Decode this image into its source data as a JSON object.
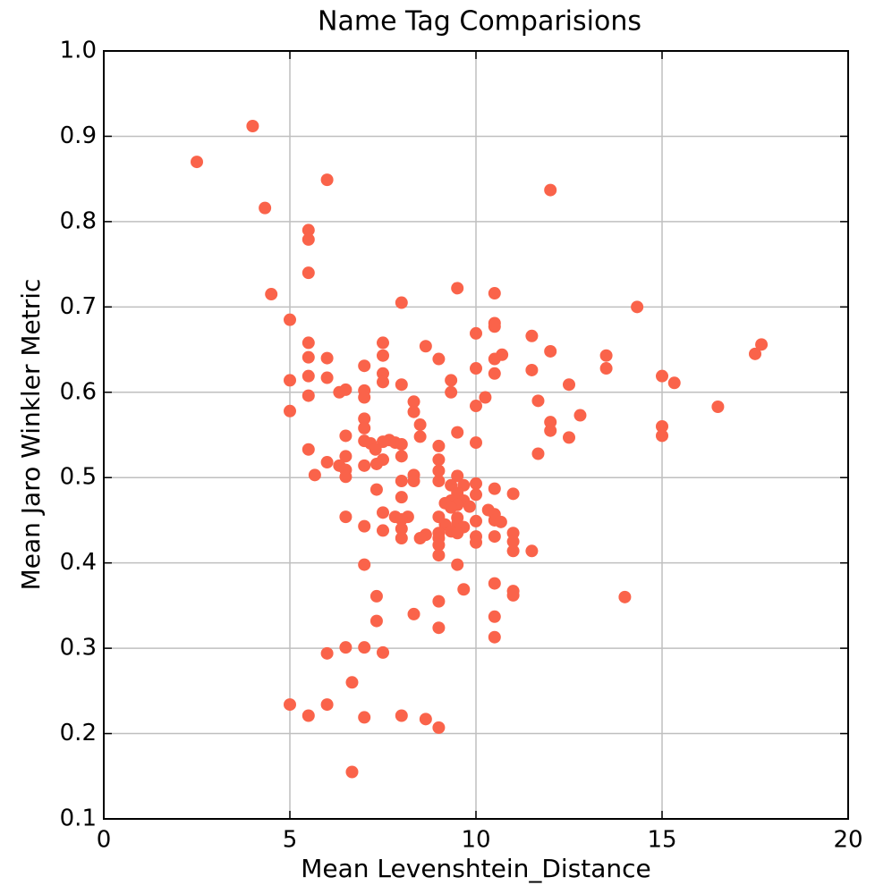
{
  "chart_data": {
    "type": "scatter",
    "title": "Name Tag Comparisions",
    "x_label": "Mean Levenshtein_Distance",
    "y_label": "Mean Jaro Winkler Metric",
    "color": "#fa634a",
    "grid": true,
    "xlim": [
      0,
      20
    ],
    "xticks": [
      0,
      5,
      10,
      15,
      20
    ],
    "ylim": [
      0.1,
      1.0
    ],
    "yticks": [
      0.1,
      0.2,
      0.3,
      0.4,
      0.5,
      0.6,
      0.7,
      0.8,
      0.9,
      {
        "value": 1.0,
        "label": "1.0"
      }
    ],
    "x": [
      2.5,
      4.0,
      4.33,
      6.0,
      12.0,
      4.5,
      5.5,
      5.5,
      5.5,
      8.0,
      9.5,
      10.5,
      14.33,
      5.0,
      10.5,
      10.5,
      10.0,
      11.5,
      5.5,
      7.5,
      8.65,
      17.67,
      17.5,
      12.0,
      10.7,
      10.5,
      13.5,
      5.5,
      6.0,
      7.5,
      9.0,
      7.0,
      13.5,
      11.5,
      10.0,
      10.5,
      7.5,
      5.5,
      15.0,
      5.0,
      6.0,
      7.5,
      15.33,
      12.5,
      8.0,
      9.33,
      6.5,
      7.0,
      6.33,
      9.33,
      5.5,
      7.0,
      10.25,
      11.67,
      8.33,
      10.0,
      16.5,
      5.0,
      8.33,
      12.8,
      7.0,
      8.5,
      12.0,
      15.0,
      7.0,
      12.0,
      9.5,
      8.5,
      6.5,
      15.0,
      12.5,
      7.67,
      7.0,
      7.5,
      7.83,
      10.0,
      7.17,
      8.0,
      9.0,
      5.5,
      7.3,
      11.67,
      8.0,
      6.5,
      9.0,
      7.5,
      6.0,
      7.33,
      7.0,
      6.33,
      6.5,
      9.0,
      5.67,
      8.33,
      9.5,
      6.5,
      8.33,
      8.0,
      9.0,
      10.0,
      9.67,
      9.33,
      7.33,
      10.5,
      9.5,
      11.0,
      10.0,
      8.0,
      9.33,
      9.67,
      9.17,
      9.5,
      9.83,
      9.33,
      10.33,
      7.5,
      10.5,
      7.83,
      6.5,
      9.0,
      8.17,
      9.5,
      8.0,
      10.0,
      10.5,
      10.67,
      9.5,
      9.17,
      7.0,
      9.67,
      8.0,
      7.5,
      9.33,
      9.5,
      9.0,
      11.0,
      8.65,
      10.0,
      10.5,
      8.5,
      8.0,
      9.0,
      11.0,
      10.0,
      9.0,
      11.0,
      11.5,
      9.0,
      9.5,
      7.0,
      10.5,
      9.67,
      11.0,
      11.0,
      14.0,
      7.33,
      9.0,
      8.33,
      10.5,
      7.33,
      9.0,
      10.5,
      6.5,
      7.0,
      6.0,
      7.5,
      6.67,
      5.0,
      6.0,
      5.5,
      7.0,
      8.0,
      8.65,
      9.0,
      6.67
    ],
    "y": [
      0.87,
      0.912,
      0.816,
      0.849,
      0.837,
      0.715,
      0.79,
      0.779,
      0.74,
      0.705,
      0.722,
      0.716,
      0.7,
      0.685,
      0.681,
      0.677,
      0.669,
      0.666,
      0.658,
      0.658,
      0.654,
      0.656,
      0.645,
      0.648,
      0.644,
      0.639,
      0.643,
      0.641,
      0.64,
      0.643,
      0.639,
      0.631,
      0.628,
      0.626,
      0.628,
      0.622,
      0.622,
      0.619,
      0.619,
      0.614,
      0.617,
      0.612,
      0.611,
      0.609,
      0.609,
      0.614,
      0.603,
      0.602,
      0.6,
      0.6,
      0.596,
      0.594,
      0.594,
      0.59,
      0.589,
      0.584,
      0.583,
      0.578,
      0.577,
      0.573,
      0.569,
      0.562,
      0.565,
      0.56,
      0.558,
      0.555,
      0.553,
      0.548,
      0.549,
      0.549,
      0.547,
      0.544,
      0.543,
      0.542,
      0.541,
      0.541,
      0.54,
      0.539,
      0.537,
      0.533,
      0.533,
      0.528,
      0.525,
      0.525,
      0.521,
      0.521,
      0.518,
      0.516,
      0.514,
      0.514,
      0.509,
      0.508,
      0.503,
      0.503,
      0.502,
      0.501,
      0.496,
      0.496,
      0.496,
      0.493,
      0.491,
      0.491,
      0.486,
      0.487,
      0.482,
      0.481,
      0.48,
      0.477,
      0.473,
      0.473,
      0.47,
      0.468,
      0.466,
      0.465,
      0.462,
      0.459,
      0.457,
      0.454,
      0.454,
      0.454,
      0.454,
      0.453,
      0.451,
      0.449,
      0.45,
      0.448,
      0.446,
      0.445,
      0.443,
      0.442,
      0.44,
      0.438,
      0.437,
      0.435,
      0.435,
      0.435,
      0.433,
      0.431,
      0.431,
      0.429,
      0.429,
      0.429,
      0.425,
      0.424,
      0.421,
      0.414,
      0.414,
      0.409,
      0.398,
      0.398,
      0.376,
      0.369,
      0.367,
      0.362,
      0.36,
      0.361,
      0.355,
      0.34,
      0.337,
      0.332,
      0.324,
      0.313,
      0.301,
      0.301,
      0.294,
      0.295,
      0.26,
      0.234,
      0.234,
      0.221,
      0.219,
      0.221,
      0.217,
      0.207,
      0.155
    ]
  }
}
